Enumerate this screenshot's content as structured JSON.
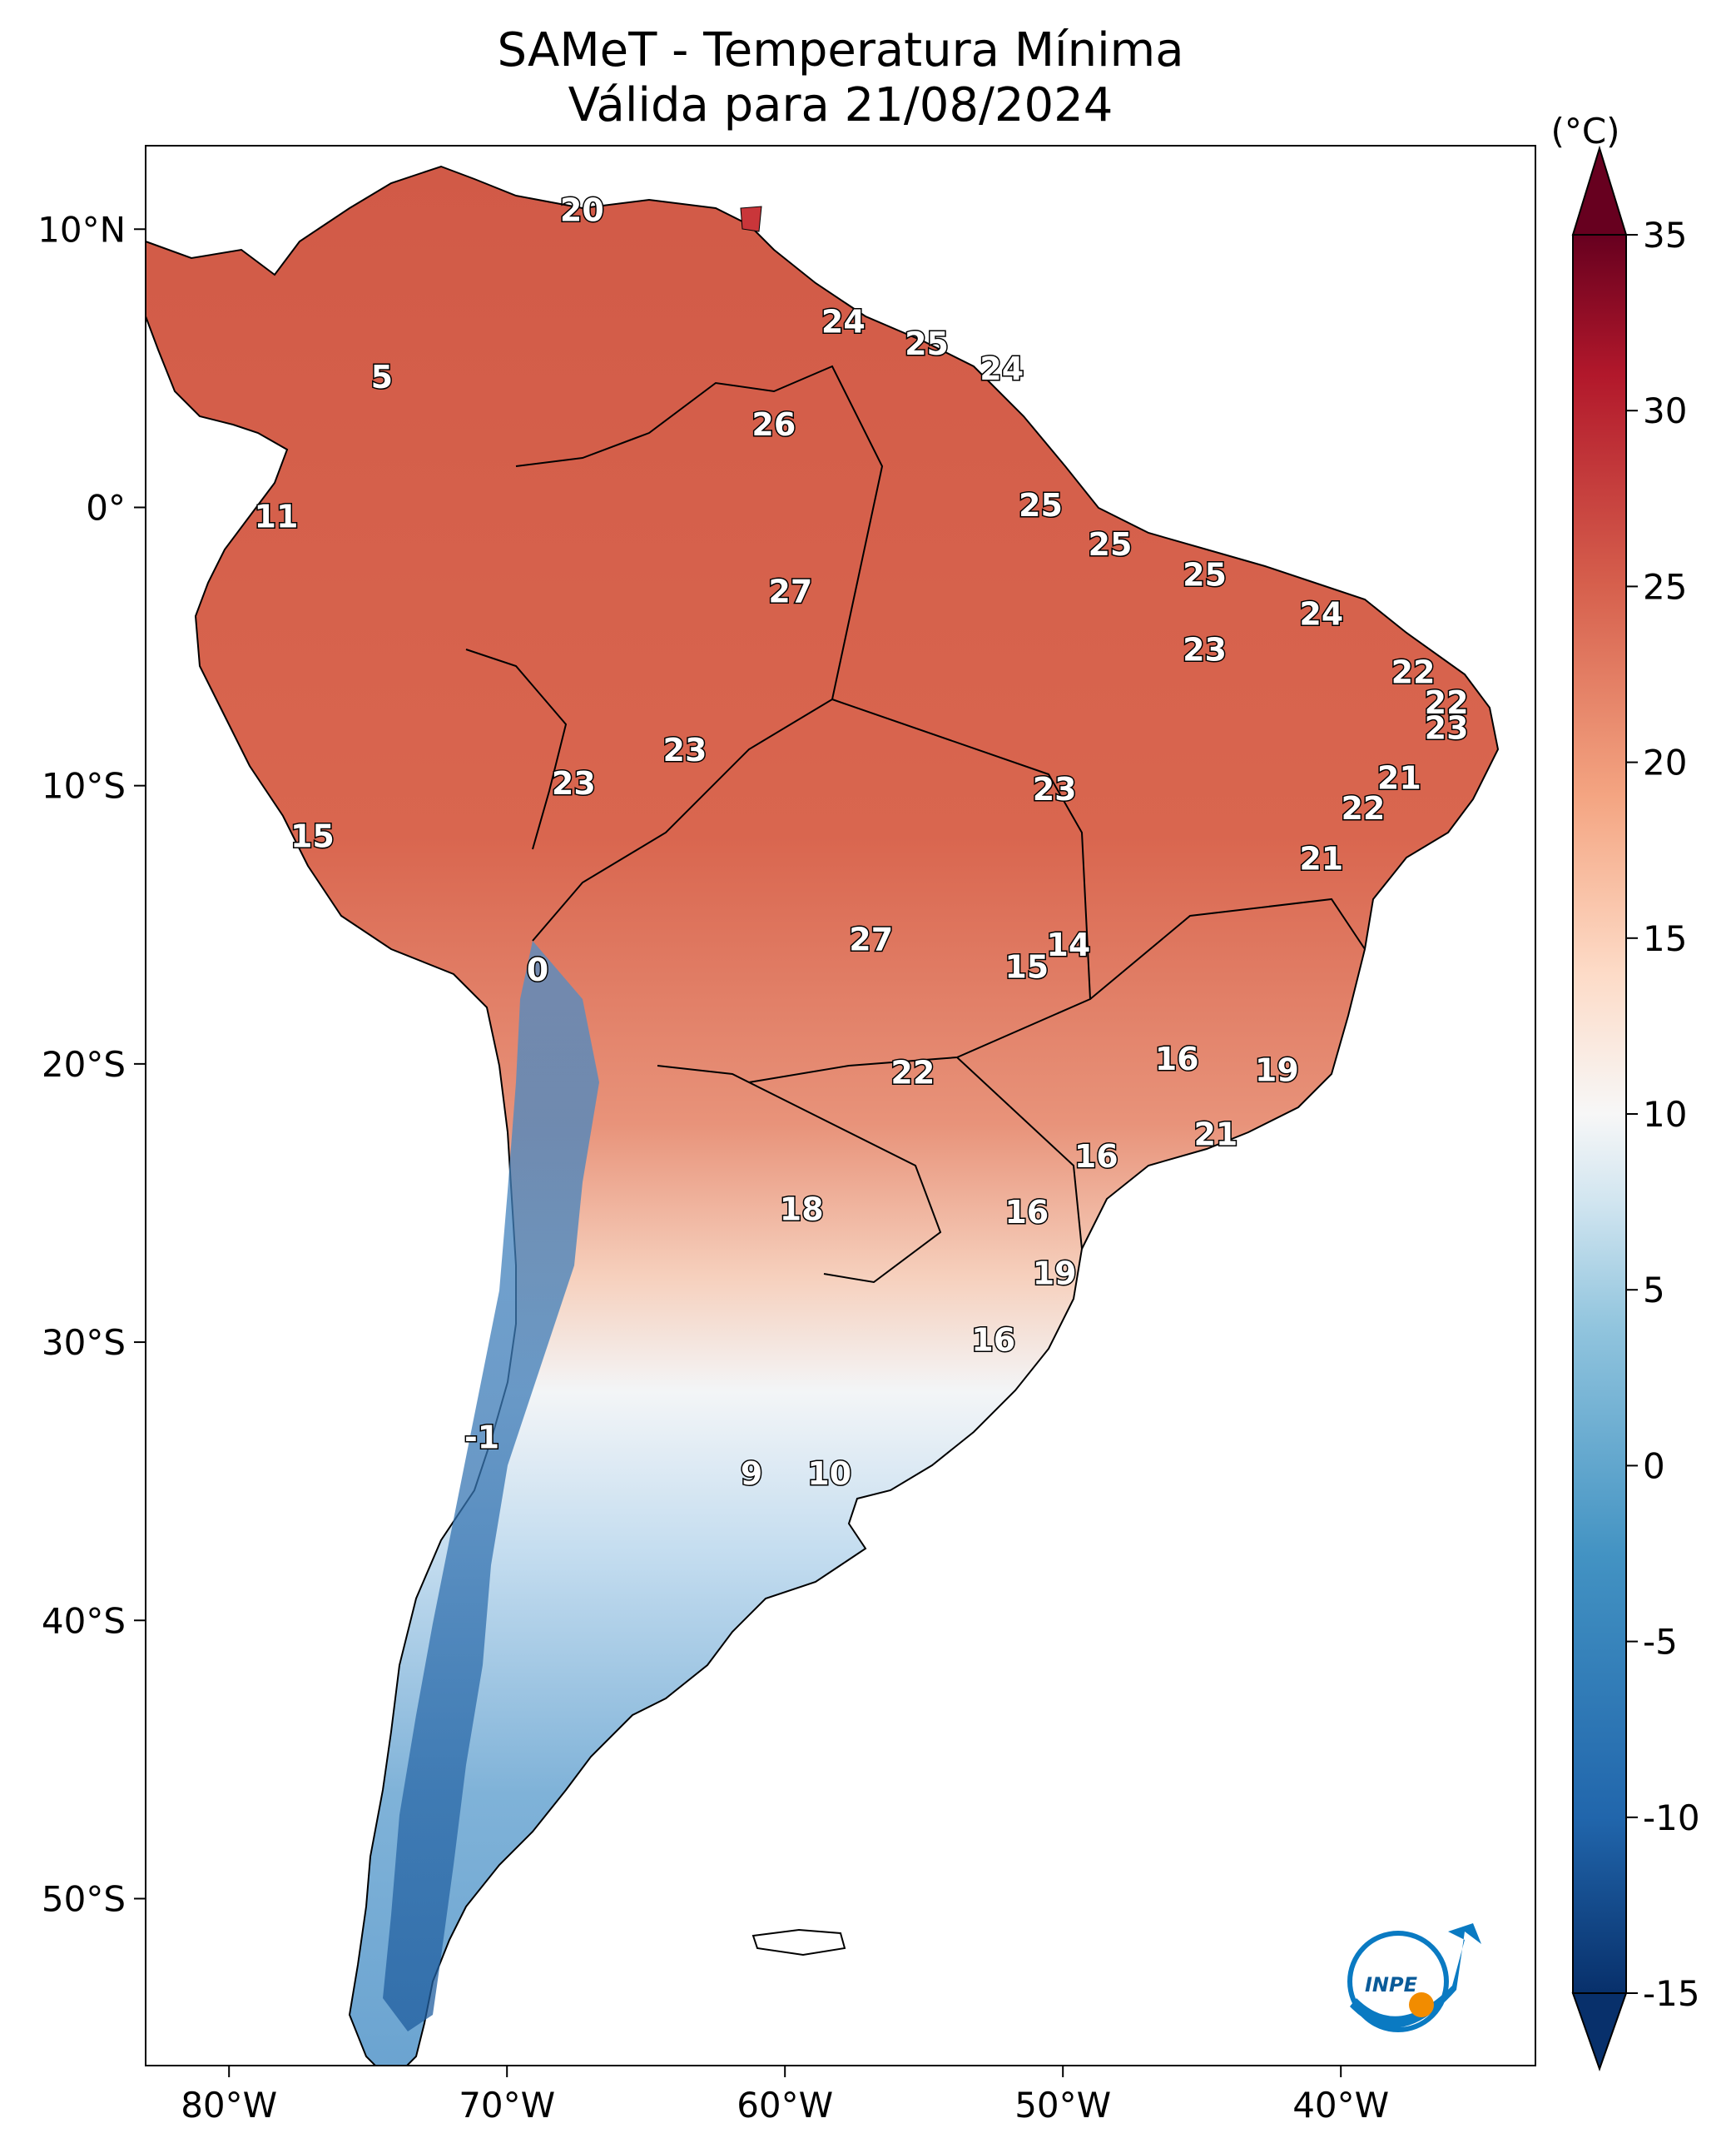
{
  "title": {
    "line1": "SAMeT - Temperatura Mínima",
    "line2": "Válida para 21/08/2024"
  },
  "map": {
    "lon_ticks": [
      "80°W",
      "70°W",
      "60°W",
      "50°W",
      "40°W"
    ],
    "lat_ticks": [
      "10°N",
      "0°",
      "10°S",
      "20°S",
      "30°S",
      "40°S",
      "50°S"
    ],
    "extent": {
      "lon_min": -83,
      "lon_max": -33,
      "lat_min": -56,
      "lat_max": 13
    },
    "labels": [
      {
        "text": "20",
        "lon": -67.3,
        "lat": 10.6
      },
      {
        "text": "24",
        "lon": -57.9,
        "lat": 6.6
      },
      {
        "text": "25",
        "lon": -54.9,
        "lat": 5.8
      },
      {
        "text": "24",
        "lon": -52.2,
        "lat": 4.9
      },
      {
        "text": "5",
        "lon": -74.5,
        "lat": 4.6
      },
      {
        "text": "26",
        "lon": -60.4,
        "lat": 2.9
      },
      {
        "text": "11",
        "lon": -78.3,
        "lat": -0.4
      },
      {
        "text": "25",
        "lon": -50.8,
        "lat": 0.0
      },
      {
        "text": "25",
        "lon": -48.3,
        "lat": -1.4
      },
      {
        "text": "25",
        "lon": -44.9,
        "lat": -2.5
      },
      {
        "text": "27",
        "lon": -59.8,
        "lat": -3.1
      },
      {
        "text": "24",
        "lon": -40.7,
        "lat": -3.9
      },
      {
        "text": "23",
        "lon": -44.9,
        "lat": -5.2
      },
      {
        "text": "22",
        "lon": -37.4,
        "lat": -6.0
      },
      {
        "text": "22",
        "lon": -36.2,
        "lat": -7.1
      },
      {
        "text": "23",
        "lon": -36.2,
        "lat": -8.0
      },
      {
        "text": "23",
        "lon": -63.6,
        "lat": -8.8
      },
      {
        "text": "23",
        "lon": -67.6,
        "lat": -10.0
      },
      {
        "text": "21",
        "lon": -37.9,
        "lat": -9.8
      },
      {
        "text": "23",
        "lon": -50.3,
        "lat": -10.2
      },
      {
        "text": "22",
        "lon": -39.2,
        "lat": -10.9
      },
      {
        "text": "15",
        "lon": -77.0,
        "lat": -11.9
      },
      {
        "text": "21",
        "lon": -40.7,
        "lat": -12.7
      },
      {
        "text": "14",
        "lon": -49.8,
        "lat": -15.8
      },
      {
        "text": "27",
        "lon": -56.9,
        "lat": -15.6
      },
      {
        "text": "15",
        "lon": -51.3,
        "lat": -16.6
      },
      {
        "text": "0",
        "lon": -68.9,
        "lat": -16.7
      },
      {
        "text": "16",
        "lon": -45.9,
        "lat": -19.9
      },
      {
        "text": "22",
        "lon": -55.4,
        "lat": -20.4
      },
      {
        "text": "19",
        "lon": -42.3,
        "lat": -20.3
      },
      {
        "text": "21",
        "lon": -44.5,
        "lat": -22.6
      },
      {
        "text": "16",
        "lon": -48.8,
        "lat": -23.4
      },
      {
        "text": "18",
        "lon": -59.4,
        "lat": -25.3
      },
      {
        "text": "16",
        "lon": -51.3,
        "lat": -25.4
      },
      {
        "text": "19",
        "lon": -50.3,
        "lat": -27.6
      },
      {
        "text": "16",
        "lon": -52.5,
        "lat": -30.0
      },
      {
        "text": "-1",
        "lon": -70.9,
        "lat": -33.5
      },
      {
        "text": "9",
        "lon": -61.2,
        "lat": -34.8
      },
      {
        "text": "10",
        "lon": -58.4,
        "lat": -34.8
      }
    ]
  },
  "colorbar": {
    "unit": "(°C)",
    "ticks": [
      "35",
      "30",
      "25",
      "20",
      "15",
      "10",
      "5",
      "0",
      "-5",
      "-10",
      "-15"
    ],
    "vmin": -15,
    "vmax": 35,
    "colors": [
      "#08306b",
      "#2166ac",
      "#4393c3",
      "#92c5de",
      "#d1e5f0",
      "#f7f7f7",
      "#fddbc7",
      "#f4a582",
      "#d6604d",
      "#b2182b",
      "#67001f"
    ]
  },
  "logo": {
    "text": "INPE",
    "colors": {
      "blue": "#0a7ac2",
      "orange": "#f28c00"
    }
  }
}
